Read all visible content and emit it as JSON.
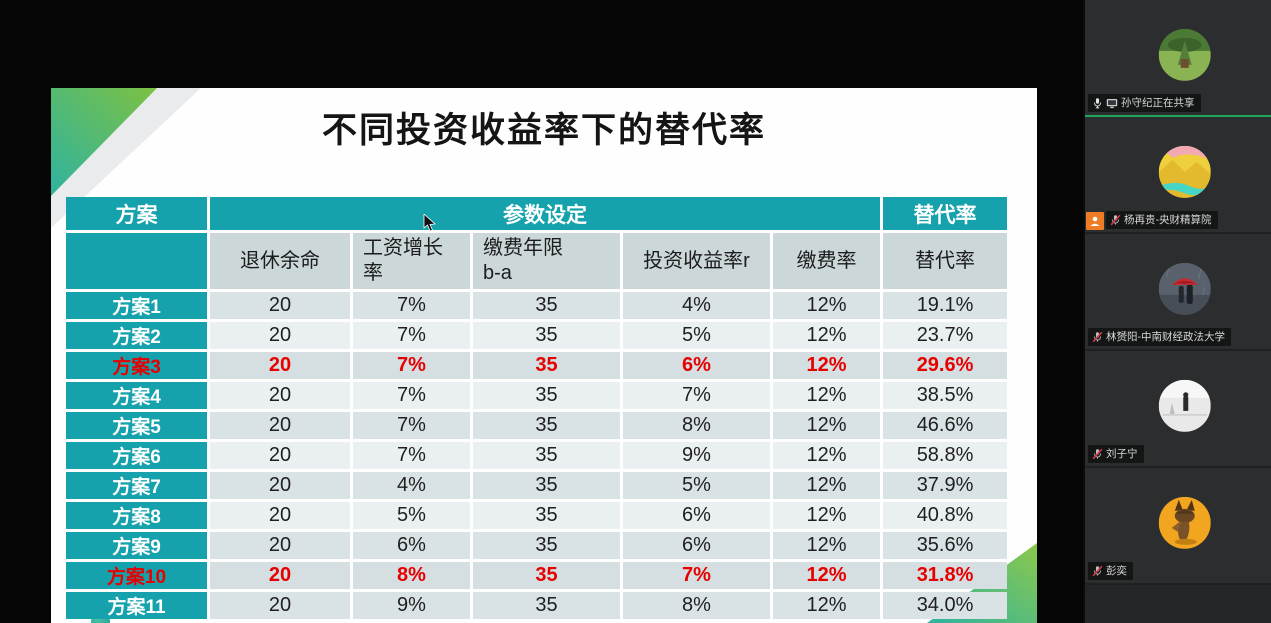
{
  "slide": {
    "title": "不同投资收益率下的替代率",
    "table": {
      "group_headers": {
        "plan": "方案",
        "params": "参数设定",
        "replacement": "替代率"
      },
      "sub_headers": [
        "退休余命",
        "工资增长\n率",
        "缴费年限\nb-a",
        "投资收益率r",
        "缴费率",
        "替代率"
      ],
      "rows": [
        {
          "label": "方案1",
          "values": [
            "20",
            "7%",
            "35",
            "4%",
            "12%",
            "19.1%"
          ],
          "highlight": false
        },
        {
          "label": "方案2",
          "values": [
            "20",
            "7%",
            "35",
            "5%",
            "12%",
            "23.7%"
          ],
          "highlight": false
        },
        {
          "label": "方案3",
          "values": [
            "20",
            "7%",
            "35",
            "6%",
            "12%",
            "29.6%"
          ],
          "highlight": true
        },
        {
          "label": "方案4",
          "values": [
            "20",
            "7%",
            "35",
            "7%",
            "12%",
            "38.5%"
          ],
          "highlight": false
        },
        {
          "label": "方案5",
          "values": [
            "20",
            "7%",
            "35",
            "8%",
            "12%",
            "46.6%"
          ],
          "highlight": false
        },
        {
          "label": "方案6",
          "values": [
            "20",
            "7%",
            "35",
            "9%",
            "12%",
            "58.8%"
          ],
          "highlight": false
        },
        {
          "label": "方案7",
          "values": [
            "20",
            "4%",
            "35",
            "5%",
            "12%",
            "37.9%"
          ],
          "highlight": false
        },
        {
          "label": "方案8",
          "values": [
            "20",
            "5%",
            "35",
            "6%",
            "12%",
            "40.8%"
          ],
          "highlight": false
        },
        {
          "label": "方案9",
          "values": [
            "20",
            "6%",
            "35",
            "6%",
            "12%",
            "35.6%"
          ],
          "highlight": false
        },
        {
          "label": "方案10",
          "values": [
            "20",
            "8%",
            "35",
            "7%",
            "12%",
            "31.8%"
          ],
          "highlight": true
        },
        {
          "label": "方案11",
          "values": [
            "20",
            "9%",
            "35",
            "8%",
            "12%",
            "34.0%"
          ],
          "highlight": false
        }
      ]
    },
    "colors": {
      "header_teal": "#16a2ac",
      "highlight_red": "#e60000",
      "row_dark": "#d9e2e5",
      "row_light": "#eaf0f1",
      "subheader_bg": "#ccd7da",
      "accent_gradient_start": "#2fb3a0",
      "accent_gradient_end": "#7cc142"
    }
  },
  "sidebar": {
    "participants": [
      {
        "name": "孙守纪正在共享",
        "muted": false,
        "sharing": true,
        "badge": false,
        "avatar": "nature-green"
      },
      {
        "name": "杨再贵-央财精算院",
        "muted": true,
        "sharing": false,
        "badge": true,
        "avatar": "golden-landscape"
      },
      {
        "name": "林赟阳-中南财经政法大学",
        "muted": true,
        "sharing": false,
        "badge": false,
        "avatar": "red-umbrella"
      },
      {
        "name": "刘子宁",
        "muted": true,
        "sharing": false,
        "badge": false,
        "avatar": "white-figure"
      },
      {
        "name": "彭奕",
        "muted": true,
        "sharing": false,
        "badge": false,
        "avatar": "cartoon-fox"
      }
    ]
  }
}
